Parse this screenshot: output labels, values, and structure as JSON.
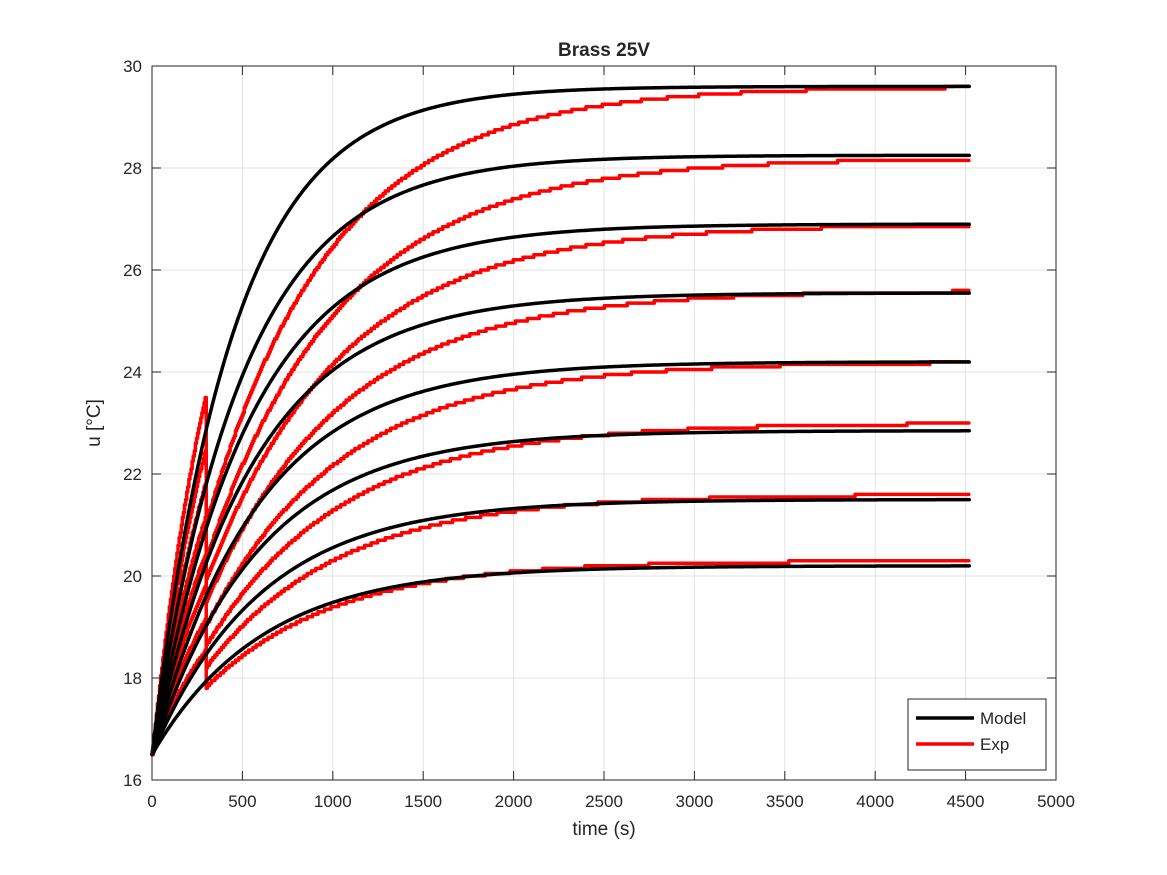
{
  "chart_data": {
    "type": "line",
    "title": "Brass 25V",
    "xlabel": "time (s)",
    "ylabel": "u [°C]",
    "xlim": [
      0,
      5000
    ],
    "ylim": [
      16,
      30
    ],
    "xticks": [
      0,
      500,
      1000,
      1500,
      2000,
      2500,
      3000,
      3500,
      4000,
      4500,
      5000
    ],
    "yticks": [
      16,
      18,
      20,
      22,
      24,
      26,
      28,
      30
    ],
    "grid": true,
    "legend_position": "bottom-right",
    "legend": [
      "Model",
      "Exp"
    ],
    "colors": {
      "Model": "#000000",
      "Exp": "#ff0000"
    },
    "time_end": 4520,
    "initial_temperature": 16.5,
    "series": [
      {
        "name": "Model",
        "curve": 1,
        "final": 29.6,
        "tau": 450
      },
      {
        "name": "Model",
        "curve": 2,
        "final": 28.25,
        "tau": 500
      },
      {
        "name": "Model",
        "curve": 3,
        "final": 26.9,
        "tau": 540
      },
      {
        "name": "Model",
        "curve": 4,
        "final": 25.55,
        "tau": 560
      },
      {
        "name": "Model",
        "curve": 5,
        "final": 24.2,
        "tau": 580
      },
      {
        "name": "Model",
        "curve": 6,
        "final": 22.85,
        "tau": 590
      },
      {
        "name": "Model",
        "curve": 7,
        "final": 21.5,
        "tau": 600
      },
      {
        "name": "Model",
        "curve": 8,
        "final": 20.2,
        "tau": 610
      },
      {
        "name": "Exp",
        "curve": 1,
        "final": 29.6,
        "tau": 700
      },
      {
        "name": "Exp",
        "curve": 2,
        "final": 28.2,
        "tau": 750
      },
      {
        "name": "Exp",
        "curve": 3,
        "final": 26.9,
        "tau": 750
      },
      {
        "name": "Exp",
        "curve": 4,
        "final": 25.6,
        "tau": 750
      },
      {
        "name": "Exp",
        "curve": 5,
        "final": 24.2,
        "tau": 750
      },
      {
        "name": "Exp",
        "curve": 6,
        "final": 23.0,
        "tau": 750
      },
      {
        "name": "Exp",
        "curve": 7,
        "final": 21.6,
        "tau": 730
      },
      {
        "name": "Exp",
        "curve": 8,
        "final": 20.3,
        "tau": 700
      }
    ]
  }
}
